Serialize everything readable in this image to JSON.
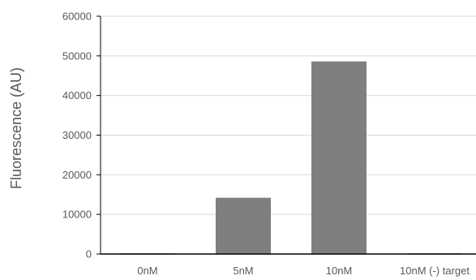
{
  "chart_data": {
    "type": "bar",
    "title": "",
    "xlabel": "",
    "ylabel": "Fluorescence (AU)",
    "categories": [
      "0nM",
      "5nM",
      "10nM",
      "10nM (-) target"
    ],
    "values": [
      200,
      14200,
      48600,
      200
    ],
    "ylim": [
      0,
      60000
    ],
    "yticks": [
      0,
      10000,
      20000,
      30000,
      40000,
      50000,
      60000
    ],
    "grid": true,
    "legend": "none",
    "bar_color": "#7f7f7f",
    "grid_color": "#d9d9d9",
    "axis_color": "#000000"
  }
}
